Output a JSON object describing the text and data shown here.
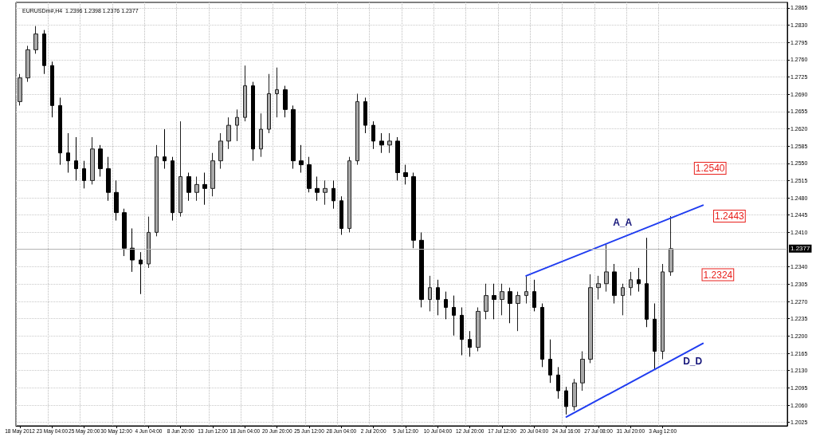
{
  "chart_data": {
    "type": "candlestick",
    "title": "EURUSDm#,H4  1.2396 1.2398 1.2376 1.2377",
    "categories": [
      "18 May 2012",
      null,
      null,
      null,
      "23 May 04:00",
      null,
      null,
      null,
      "25 May 20:00",
      null,
      null,
      null,
      "30 May 12:00",
      null,
      null,
      null,
      "4 Jun 04:00",
      null,
      null,
      null,
      "8 Jun 20:00",
      null,
      null,
      null,
      "13 Jun 12:00",
      null,
      null,
      null,
      "18 Jun 04:00",
      null,
      null,
      null,
      "20 Jun 20:00",
      null,
      null,
      null,
      "25 Jun 12:00",
      null,
      null,
      null,
      "28 Jun 04:00",
      null,
      null,
      null,
      "2 Jul 20:00",
      null,
      null,
      null,
      "5 Jul 12:00",
      null,
      null,
      null,
      "10 Jul 04:00",
      null,
      null,
      null,
      "12 Jul 20:00",
      null,
      null,
      null,
      "17 Jul 12:00",
      null,
      null,
      null,
      "20 Jul 04:00",
      null,
      null,
      null,
      "24 Jul 16:00",
      null,
      null,
      null,
      "27 Jul 08:00",
      null,
      null,
      null,
      "31 Jul 20:00",
      null,
      null,
      null,
      "3 Aug 12:00",
      null,
      null,
      null,
      null,
      null,
      null,
      null,
      null,
      null,
      null,
      null,
      null,
      null,
      null,
      null
    ],
    "ohlc": [
      [
        1.2675,
        1.2731,
        1.2667,
        1.2723
      ],
      [
        1.2723,
        1.2788,
        1.2715,
        1.278
      ],
      [
        1.278,
        1.2828,
        1.2772,
        1.2812
      ],
      [
        1.2812,
        1.282,
        1.2731,
        1.2748
      ],
      [
        1.2748,
        1.2756,
        1.2643,
        1.2667
      ],
      [
        1.2667,
        1.2683,
        1.2547,
        1.2571
      ],
      [
        1.2571,
        1.2611,
        1.2531,
        1.2555
      ],
      [
        1.2555,
        1.2603,
        1.2515,
        1.2539
      ],
      [
        1.2539,
        1.2555,
        1.2499,
        1.2515
      ],
      [
        1.2515,
        1.2603,
        1.2507,
        1.2579
      ],
      [
        1.2579,
        1.2587,
        1.2523,
        1.2539
      ],
      [
        1.2539,
        1.2563,
        1.2474,
        1.2491
      ],
      [
        1.2491,
        1.2515,
        1.2434,
        1.245
      ],
      [
        1.245,
        1.2458,
        1.2362,
        1.2378
      ],
      [
        1.2378,
        1.2418,
        1.233,
        1.2354
      ],
      [
        1.2354,
        1.237,
        1.2285,
        1.2346
      ],
      [
        1.2346,
        1.2442,
        1.2338,
        1.241
      ],
      [
        1.241,
        1.2587,
        1.2402,
        1.2563
      ],
      [
        1.2563,
        1.2619,
        1.2539,
        1.2555
      ],
      [
        1.2555,
        1.2563,
        1.2434,
        1.245
      ],
      [
        1.245,
        1.2635,
        1.2442,
        1.2523
      ],
      [
        1.2523,
        1.2531,
        1.2474,
        1.2491
      ],
      [
        1.2491,
        1.2523,
        1.2474,
        1.2507
      ],
      [
        1.2507,
        1.2531,
        1.2466,
        1.2499
      ],
      [
        1.2499,
        1.2571,
        1.2483,
        1.2555
      ],
      [
        1.2555,
        1.2611,
        1.2539,
        1.2595
      ],
      [
        1.2595,
        1.2643,
        1.2579,
        1.2627
      ],
      [
        1.2627,
        1.2659,
        1.2595,
        1.2643
      ],
      [
        1.2643,
        1.2748,
        1.2635,
        1.2707
      ],
      [
        1.2707,
        1.2715,
        1.2555,
        1.2579
      ],
      [
        1.2579,
        1.2651,
        1.2563,
        1.2619
      ],
      [
        1.2619,
        1.2731,
        1.2611,
        1.2691
      ],
      [
        1.2691,
        1.2744,
        1.2643,
        1.2699
      ],
      [
        1.2699,
        1.2707,
        1.2643,
        1.2659
      ],
      [
        1.2659,
        1.2667,
        1.2539,
        1.2555
      ],
      [
        1.2555,
        1.2587,
        1.2531,
        1.2547
      ],
      [
        1.2547,
        1.2563,
        1.2491,
        1.2499
      ],
      [
        1.2499,
        1.2523,
        1.2474,
        1.2491
      ],
      [
        1.2491,
        1.2515,
        1.2466,
        1.2499
      ],
      [
        1.2499,
        1.2515,
        1.2458,
        1.2474
      ],
      [
        1.2474,
        1.2483,
        1.2405,
        1.2418
      ],
      [
        1.2418,
        1.2563,
        1.241,
        1.2555
      ],
      [
        1.2555,
        1.2691,
        1.2547,
        1.2675
      ],
      [
        1.2675,
        1.2683,
        1.2611,
        1.2627
      ],
      [
        1.2627,
        1.2635,
        1.2579,
        1.2595
      ],
      [
        1.2595,
        1.2611,
        1.2571,
        1.2587
      ],
      [
        1.2587,
        1.2611,
        1.2571,
        1.2595
      ],
      [
        1.2595,
        1.2603,
        1.2515,
        1.2531
      ],
      [
        1.2531,
        1.2547,
        1.2507,
        1.2523
      ],
      [
        1.2523,
        1.2531,
        1.2378,
        1.2394
      ],
      [
        1.2394,
        1.241,
        1.2258,
        1.2274
      ],
      [
        1.2274,
        1.2322,
        1.225,
        1.2298
      ],
      [
        1.2298,
        1.2314,
        1.2242,
        1.2274
      ],
      [
        1.2274,
        1.229,
        1.2234,
        1.2258
      ],
      [
        1.2258,
        1.2282,
        1.2201,
        1.2242
      ],
      [
        1.2242,
        1.2258,
        1.2161,
        1.2193
      ],
      [
        1.2193,
        1.221,
        1.2158,
        1.2177
      ],
      [
        1.2177,
        1.2258,
        1.2169,
        1.225
      ],
      [
        1.225,
        1.2306,
        1.2234,
        1.2282
      ],
      [
        1.2282,
        1.2306,
        1.2234,
        1.2274
      ],
      [
        1.2274,
        1.2306,
        1.2242,
        1.229
      ],
      [
        1.229,
        1.2298,
        1.2226,
        1.2266
      ],
      [
        1.2266,
        1.229,
        1.221,
        1.2282
      ],
      [
        1.2282,
        1.2322,
        1.2266,
        1.229
      ],
      [
        1.229,
        1.2314,
        1.225,
        1.2258
      ],
      [
        1.2258,
        1.2266,
        1.2137,
        1.2153
      ],
      [
        1.2153,
        1.2193,
        1.2105,
        1.2121
      ],
      [
        1.2121,
        1.2137,
        1.2073,
        1.2089
      ],
      [
        1.2089,
        1.2097,
        1.2041,
        1.2057
      ],
      [
        1.2057,
        1.2113,
        1.2049,
        1.2105
      ],
      [
        1.2105,
        1.2169,
        1.2089,
        1.2153
      ],
      [
        1.2153,
        1.2325,
        1.2145,
        1.2298
      ],
      [
        1.2298,
        1.2322,
        1.2274,
        1.2306
      ],
      [
        1.2306,
        1.2386,
        1.229,
        1.233
      ],
      [
        1.233,
        1.2346,
        1.2266,
        1.2282
      ],
      [
        1.2282,
        1.2306,
        1.2242,
        1.2298
      ],
      [
        1.2298,
        1.233,
        1.2282,
        1.2314
      ],
      [
        1.2314,
        1.2338,
        1.229,
        1.2306
      ],
      [
        1.2306,
        1.2399,
        1.2218,
        1.2234
      ],
      [
        1.2234,
        1.2266,
        1.2132,
        1.2169
      ],
      [
        1.2169,
        1.2346,
        1.2153,
        1.233
      ],
      [
        1.233,
        1.2443,
        1.2322,
        1.2377
      ],
      null,
      null,
      null,
      null,
      null,
      null,
      null,
      null,
      null,
      null,
      null,
      null,
      null,
      null
    ],
    "series": [
      {
        "type": "line",
        "name": "A_A",
        "color": "#1f3cf0",
        "values": [
          null,
          null,
          null,
          null,
          null,
          null,
          null,
          null,
          null,
          null,
          null,
          null,
          null,
          null,
          null,
          null,
          null,
          null,
          null,
          null,
          null,
          null,
          null,
          null,
          null,
          null,
          null,
          null,
          null,
          null,
          null,
          null,
          null,
          null,
          null,
          null,
          null,
          null,
          null,
          null,
          null,
          null,
          null,
          null,
          null,
          null,
          null,
          null,
          null,
          null,
          null,
          null,
          null,
          null,
          null,
          null,
          null,
          null,
          null,
          null,
          null,
          null,
          null,
          1.2322,
          null,
          null,
          null,
          null,
          null,
          null,
          null,
          null,
          null,
          null,
          null,
          null,
          null,
          null,
          null,
          null,
          null,
          null,
          null,
          null,
          null,
          1.2465,
          null,
          null,
          null,
          null,
          null,
          null,
          null,
          null,
          null,
          null
        ]
      },
      {
        "type": "line",
        "name": "D_D",
        "color": "#1f3cf0",
        "values": [
          null,
          null,
          null,
          null,
          null,
          null,
          null,
          null,
          null,
          null,
          null,
          null,
          null,
          null,
          null,
          null,
          null,
          null,
          null,
          null,
          null,
          null,
          null,
          null,
          null,
          null,
          null,
          null,
          null,
          null,
          null,
          null,
          null,
          null,
          null,
          null,
          null,
          null,
          null,
          null,
          null,
          null,
          null,
          null,
          null,
          null,
          null,
          null,
          null,
          null,
          null,
          null,
          null,
          null,
          null,
          null,
          null,
          null,
          null,
          null,
          null,
          null,
          null,
          null,
          null,
          null,
          null,
          null,
          1.2036,
          null,
          null,
          null,
          null,
          null,
          null,
          null,
          null,
          null,
          null,
          null,
          null,
          null,
          null,
          null,
          null,
          1.2185,
          null,
          null,
          null,
          null,
          null,
          null,
          null,
          null,
          null,
          null
        ]
      }
    ],
    "ylim": [
      1.2018,
      1.2876
    ],
    "yticks": [
      1.2025,
      {
        "value": 1.206,
        "label": "1.2060"
      },
      1.2095,
      {
        "value": 1.213,
        "label": "1.2130"
      },
      1.2165,
      {
        "value": 1.22,
        "label": "1.2200"
      },
      1.2235,
      {
        "value": 1.227,
        "label": "1.2270"
      },
      1.2305,
      {
        "value": 1.234,
        "label": "1.2340"
      },
      {
        "value": 1.241,
        "label": "1.2410"
      },
      1.2445,
      {
        "value": 1.248,
        "label": "1.2480"
      },
      1.2515,
      {
        "value": 1.255,
        "label": "1.2550"
      },
      1.2585,
      {
        "value": 1.262,
        "label": "1.2620"
      },
      1.2655,
      {
        "value": 1.269,
        "label": "1.2690"
      },
      1.2725,
      {
        "value": 1.276,
        "label": "1.2760"
      },
      1.2795,
      {
        "value": 1.283,
        "label": "1.2830"
      },
      1.2865
    ],
    "grid": true,
    "ref_lines": [
      {
        "axis": "y",
        "value": 1.2377,
        "label": "1.2377",
        "color": "#b4b4b4"
      }
    ],
    "annotations": [
      {
        "text": "1.2540",
        "y": 1.254
      },
      {
        "text": "1.2443",
        "y": 1.2443
      },
      {
        "text": "1.2324",
        "y": 1.2324
      }
    ]
  }
}
